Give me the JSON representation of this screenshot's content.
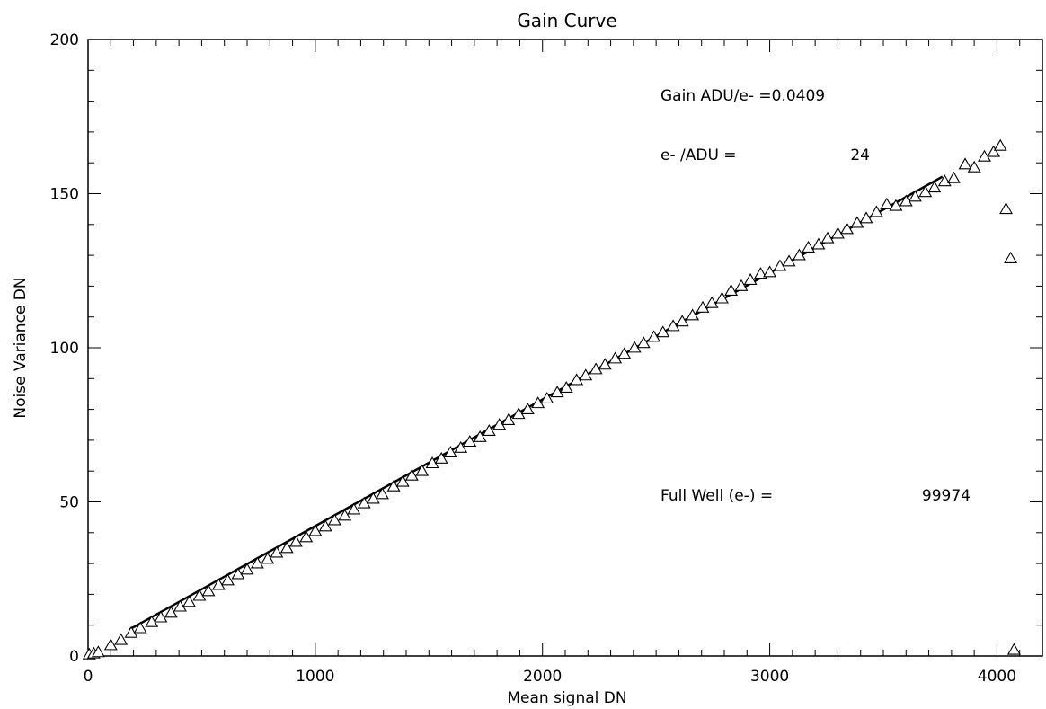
{
  "chart_data": {
    "type": "scatter",
    "title": "Gain Curve",
    "xlabel": "Mean signal DN",
    "ylabel": "Noise Variance DN",
    "xlim": [
      0,
      4200
    ],
    "ylim": [
      0,
      200
    ],
    "x_ticks": [
      0,
      1000,
      2000,
      3000,
      4000
    ],
    "y_ticks": [
      0,
      50,
      100,
      150,
      200
    ],
    "x_minor_step": 100,
    "y_minor_step": 10,
    "grid": false,
    "annotations": {
      "gain": "Gain ADU/e- =0.0409",
      "e_per_adu_label": "e- /ADU =",
      "e_per_adu_value": "24",
      "full_well_label": "Full Well (e-) =",
      "full_well_value": "99974"
    },
    "series": [
      {
        "marker": "triangle",
        "points": [
          [
            5,
            0.5
          ],
          [
            25,
            0.8
          ],
          [
            45,
            1.2
          ],
          [
            100,
            3.5
          ],
          [
            145,
            5.2
          ],
          [
            190,
            7.5
          ],
          [
            230,
            9.0
          ],
          [
            280,
            11.0
          ],
          [
            320,
            12.5
          ],
          [
            365,
            14.0
          ],
          [
            405,
            16.0
          ],
          [
            445,
            17.5
          ],
          [
            490,
            19.5
          ],
          [
            530,
            21.0
          ],
          [
            575,
            23.0
          ],
          [
            615,
            24.5
          ],
          [
            660,
            26.5
          ],
          [
            700,
            28.0
          ],
          [
            745,
            30.0
          ],
          [
            790,
            31.5
          ],
          [
            830,
            33.5
          ],
          [
            875,
            35.0
          ],
          [
            915,
            37.0
          ],
          [
            960,
            38.5
          ],
          [
            1000,
            40.5
          ],
          [
            1045,
            42.0
          ],
          [
            1085,
            44.0
          ],
          [
            1130,
            45.5
          ],
          [
            1170,
            47.5
          ],
          [
            1215,
            49.5
          ],
          [
            1255,
            51.0
          ],
          [
            1295,
            52.5
          ],
          [
            1345,
            55.0
          ],
          [
            1385,
            56.5
          ],
          [
            1425,
            58.5
          ],
          [
            1470,
            60.0
          ],
          [
            1515,
            62.5
          ],
          [
            1555,
            64.0
          ],
          [
            1595,
            66.0
          ],
          [
            1640,
            67.5
          ],
          [
            1680,
            69.5
          ],
          [
            1725,
            71.0
          ],
          [
            1765,
            73.0
          ],
          [
            1810,
            75.0
          ],
          [
            1850,
            76.5
          ],
          [
            1895,
            78.5
          ],
          [
            1935,
            80.0
          ],
          [
            1980,
            82.0
          ],
          [
            2020,
            83.5
          ],
          [
            2065,
            85.5
          ],
          [
            2105,
            87.0
          ],
          [
            2150,
            89.5
          ],
          [
            2190,
            91.0
          ],
          [
            2235,
            93.0
          ],
          [
            2275,
            94.5
          ],
          [
            2320,
            96.5
          ],
          [
            2360,
            98.0
          ],
          [
            2405,
            100.0
          ],
          [
            2445,
            101.5
          ],
          [
            2490,
            103.5
          ],
          [
            2530,
            105.0
          ],
          [
            2575,
            107.0
          ],
          [
            2615,
            108.5
          ],
          [
            2660,
            110.5
          ],
          [
            2705,
            113.0
          ],
          [
            2745,
            114.5
          ],
          [
            2790,
            116.0
          ],
          [
            2830,
            118.5
          ],
          [
            2875,
            120.0
          ],
          [
            2915,
            122.0
          ],
          [
            2960,
            124.0
          ],
          [
            3000,
            124.5
          ],
          [
            3045,
            126.5
          ],
          [
            3085,
            128.0
          ],
          [
            3130,
            130.0
          ],
          [
            3170,
            132.5
          ],
          [
            3215,
            133.5
          ],
          [
            3255,
            135.5
          ],
          [
            3300,
            137.0
          ],
          [
            3340,
            138.5
          ],
          [
            3385,
            140.5
          ],
          [
            3425,
            142.0
          ],
          [
            3470,
            144.0
          ],
          [
            3515,
            146.5
          ],
          [
            3555,
            146.0
          ],
          [
            3600,
            147.5
          ],
          [
            3640,
            149.0
          ],
          [
            3685,
            150.5
          ],
          [
            3725,
            152.0
          ],
          [
            3770,
            154.0
          ],
          [
            3810,
            155.0
          ],
          [
            3860,
            159.5
          ],
          [
            3900,
            158.5
          ],
          [
            3945,
            162.0
          ],
          [
            3985,
            163.5
          ],
          [
            4015,
            165.5
          ],
          [
            4040,
            145.0
          ],
          [
            4060,
            129.0
          ],
          [
            4075,
            2.0
          ]
        ]
      }
    ],
    "fit_line": {
      "x": [
        180,
        3760
      ],
      "y": [
        8.5,
        155.5
      ]
    }
  }
}
